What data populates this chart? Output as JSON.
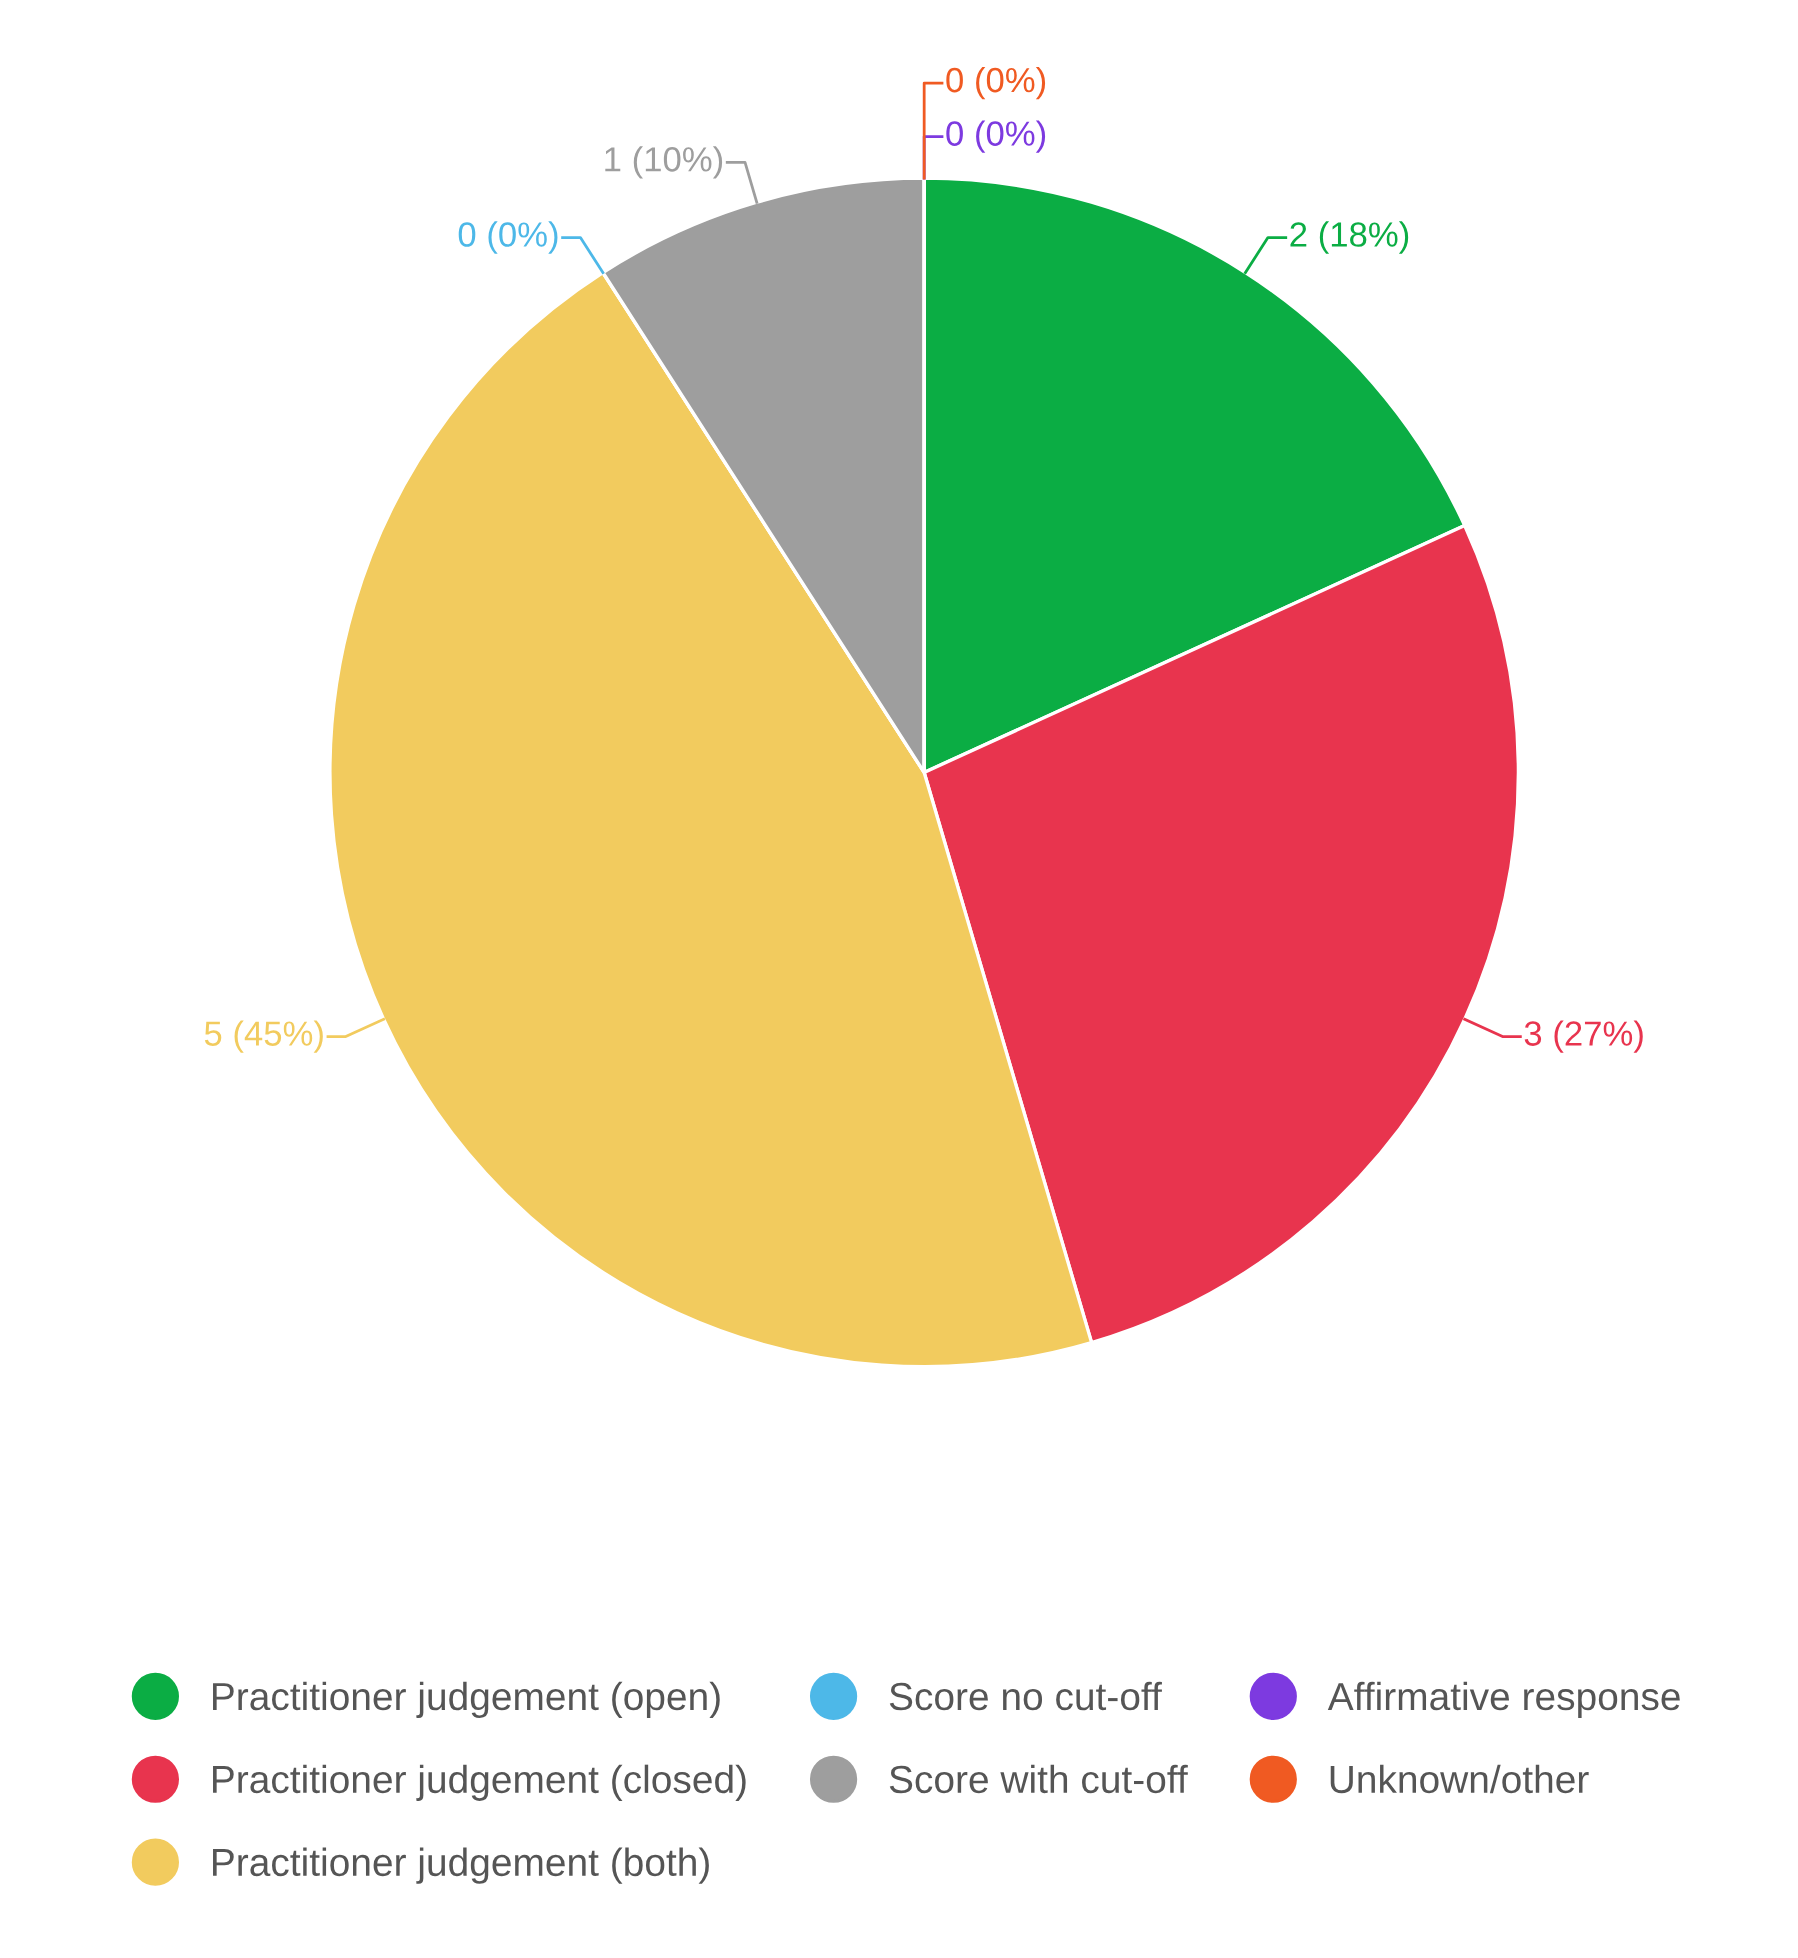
{
  "chart_data": {
    "type": "pie",
    "categories": [
      "Practitioner judgement (open)",
      "Practitioner judgement (closed)",
      "Practitioner judgement (both)",
      "Score no cut-off",
      "Score with cut-off",
      "Affirmative response",
      "Unknown/other"
    ],
    "values": [
      2,
      3,
      5,
      0,
      1,
      0,
      0
    ],
    "value_labels": [
      "2 (18%)",
      "3 (27%)",
      "5 (45%)",
      "0 (0%)",
      "1 (10%)",
      "0 (0%)",
      "0 (0%)"
    ],
    "colors": [
      "#0bad44",
      "#e8344e",
      "#f2cb5e",
      "#4db8e8",
      "#9e9e9e",
      "#7d3ae0",
      "#f05a22"
    ],
    "legend": "bottom"
  }
}
